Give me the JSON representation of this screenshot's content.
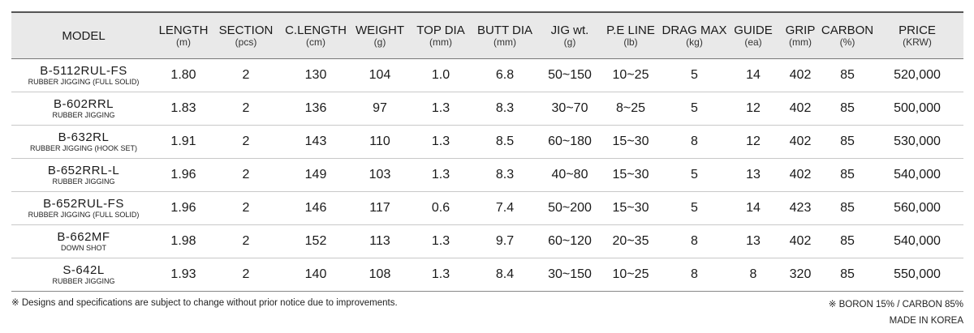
{
  "headers": [
    {
      "name": "MODEL",
      "unit": ""
    },
    {
      "name": "LENGTH",
      "unit": "(m)"
    },
    {
      "name": "SECTION",
      "unit": "(pcs)"
    },
    {
      "name": "C.LENGTH",
      "unit": "(cm)"
    },
    {
      "name": "WEIGHT",
      "unit": "(g)"
    },
    {
      "name": "TOP DIA",
      "unit": "(mm)"
    },
    {
      "name": "BUTT DIA",
      "unit": "(mm)"
    },
    {
      "name": "JIG wt.",
      "unit": "(g)"
    },
    {
      "name": "P.E LINE",
      "unit": "(lb)"
    },
    {
      "name": "DRAG MAX",
      "unit": "(kg)"
    },
    {
      "name": "GUIDE",
      "unit": "(ea)"
    },
    {
      "name": "GRIP",
      "unit": "(mm)"
    },
    {
      "name": "CARBON",
      "unit": "(%)"
    },
    {
      "name": "PRICE",
      "unit": "(KRW)"
    }
  ],
  "rows": [
    {
      "model": "B-5112RUL-FS",
      "sub": "RUBBER JIGGING (FULL SOLID)",
      "values": [
        "1.80",
        "2",
        "130",
        "104",
        "1.0",
        "6.8",
        "50~150",
        "10~25",
        "5",
        "14",
        "402",
        "85",
        "520,000"
      ]
    },
    {
      "model": "B-602RRL",
      "sub": "RUBBER JIGGING",
      "values": [
        "1.83",
        "2",
        "136",
        "97",
        "1.3",
        "8.3",
        "30~70",
        "8~25",
        "5",
        "12",
        "402",
        "85",
        "500,000"
      ]
    },
    {
      "model": "B-632RL",
      "sub": "RUBBER JIGGING (HOOK SET)",
      "values": [
        "1.91",
        "2",
        "143",
        "110",
        "1.3",
        "8.5",
        "60~180",
        "15~30",
        "8",
        "12",
        "402",
        "85",
        "530,000"
      ]
    },
    {
      "model": "B-652RRL-L",
      "sub": "RUBBER JIGGING",
      "values": [
        "1.96",
        "2",
        "149",
        "103",
        "1.3",
        "8.3",
        "40~80",
        "15~30",
        "5",
        "13",
        "402",
        "85",
        "540,000"
      ]
    },
    {
      "model": "B-652RUL-FS",
      "sub": "RUBBER JIGGING (FULL SOLID)",
      "values": [
        "1.96",
        "2",
        "146",
        "117",
        "0.6",
        "7.4",
        "50~200",
        "15~30",
        "5",
        "14",
        "423",
        "85",
        "560,000"
      ]
    },
    {
      "model": "B-662MF",
      "sub": "DOWN SHOT",
      "values": [
        "1.98",
        "2",
        "152",
        "113",
        "1.3",
        "9.7",
        "60~120",
        "20~35",
        "8",
        "13",
        "402",
        "85",
        "540,000"
      ]
    },
    {
      "model": "S-642L",
      "sub": "RUBBER JIGGING",
      "values": [
        "1.93",
        "2",
        "140",
        "108",
        "1.3",
        "8.4",
        "30~150",
        "10~25",
        "8",
        "8",
        "320",
        "85",
        "550,000"
      ]
    }
  ],
  "footnote": "※ Designs and specifications are subject to change without prior notice due to improvements.",
  "material_note": "※ BORON 15% / CARBON 85%",
  "origin": "MADE IN KOREA"
}
